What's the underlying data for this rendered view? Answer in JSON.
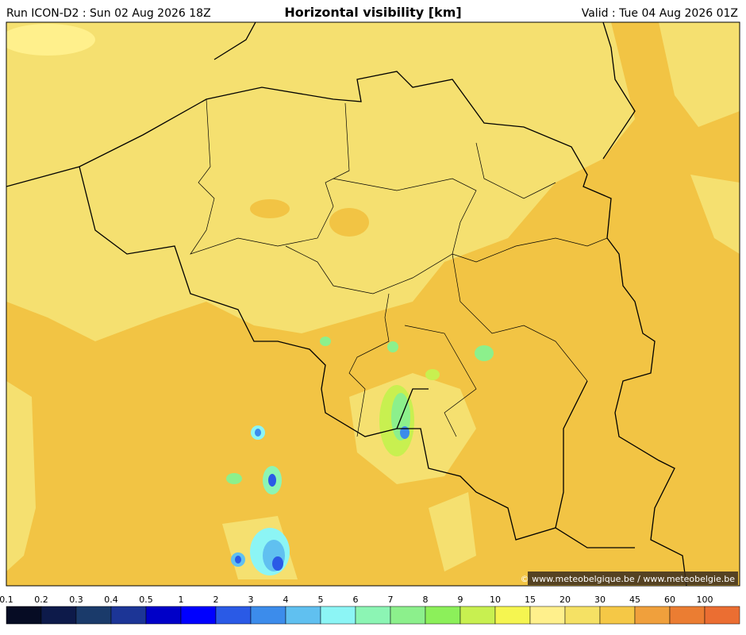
{
  "header": {
    "run": "Run ICON-D2 : Sun 02 Aug 2026 18Z",
    "title": "Horizontal visibility [km]",
    "valid": "Valid : Tue 04 Aug 2026 01Z"
  },
  "credit": "© www.meteobelgique.be / www.meteobelgie.be",
  "colorbar": {
    "labels": [
      0.1,
      0.2,
      0.3,
      0.4,
      0.5,
      1,
      2,
      3,
      4,
      5,
      6,
      7,
      8,
      9,
      10,
      15,
      20,
      30,
      45,
      60,
      100
    ],
    "colors": [
      "#060c24",
      "#0d1a4a",
      "#1a3a6a",
      "#1c3596",
      "#0000c8",
      "#0000ff",
      "#2a5ae6",
      "#3c8ceb",
      "#60c0f0",
      "#8cf5f5",
      "#8cf5b4",
      "#8cf08c",
      "#8cf05a",
      "#c8f050",
      "#f5f550",
      "#fff08c",
      "#f5e164",
      "#f5c846",
      "#f0a03c",
      "#eb7d32",
      "#eb6e32"
    ]
  }
}
